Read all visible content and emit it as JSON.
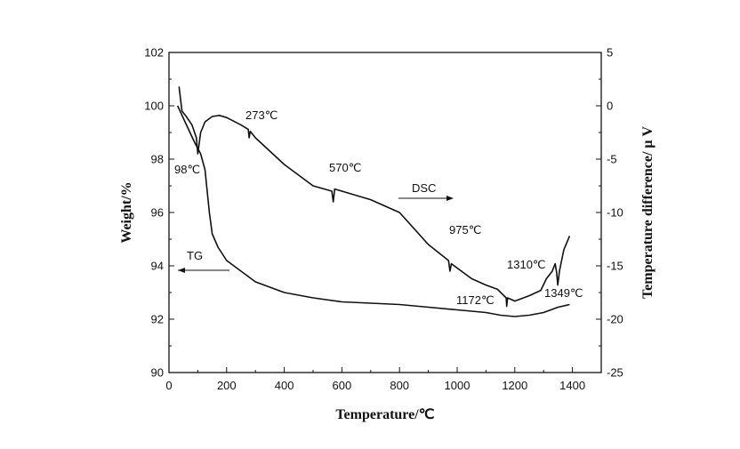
{
  "chart_data": {
    "type": "line",
    "xlabel": "Temperature/℃",
    "ylabel_left": "Weight/%",
    "ylabel_right": "Temperature difference/ μ V",
    "xlim": [
      0,
      1500
    ],
    "ylim_left": [
      90,
      102
    ],
    "ylim_right": [
      -25,
      5
    ],
    "x_ticks": [
      0,
      200,
      400,
      600,
      800,
      1000,
      1200,
      1400
    ],
    "y_left_ticks": [
      90,
      92,
      94,
      96,
      98,
      100,
      102
    ],
    "y_right_ticks": [
      -25,
      -20,
      -15,
      -10,
      -5,
      0,
      5
    ],
    "series": [
      {
        "name": "TG",
        "axis": "left",
        "x": [
          30,
          60,
          90,
          110,
          125,
          140,
          150,
          170,
          200,
          250,
          300,
          400,
          500,
          600,
          700,
          800,
          900,
          1000,
          1100,
          1150,
          1200,
          1250,
          1300,
          1350,
          1390
        ],
        "y": [
          100.0,
          99.3,
          98.6,
          98.2,
          97.6,
          96.0,
          95.2,
          94.7,
          94.2,
          93.8,
          93.4,
          93.0,
          92.8,
          92.65,
          92.6,
          92.55,
          92.45,
          92.35,
          92.25,
          92.15,
          92.1,
          92.15,
          92.25,
          92.45,
          92.55
        ]
      },
      {
        "name": "DSC",
        "axis": "right",
        "x": [
          35,
          45,
          60,
          80,
          95,
          100,
          110,
          125,
          150,
          175,
          200,
          250,
          275,
          278,
          282,
          300,
          400,
          500,
          565,
          570,
          575,
          600,
          700,
          800,
          900,
          970,
          975,
          980,
          1050,
          1100,
          1140,
          1170,
          1172,
          1175,
          1200,
          1250,
          1290,
          1310,
          1330,
          1340,
          1345,
          1349,
          1355,
          1370,
          1390
        ],
        "y": [
          1.8,
          -0.5,
          -1.0,
          -1.8,
          -3.0,
          -4.5,
          -2.5,
          -1.5,
          -1.0,
          -0.9,
          -1.1,
          -1.8,
          -2.2,
          -3.0,
          -2.4,
          -3.0,
          -5.5,
          -7.5,
          -8.0,
          -9.0,
          -7.8,
          -8.0,
          -8.8,
          -10.0,
          -13.0,
          -14.5,
          -15.5,
          -14.8,
          -16.2,
          -16.8,
          -17.2,
          -18.0,
          -18.8,
          -18.0,
          -18.3,
          -17.8,
          -17.3,
          -16.2,
          -15.5,
          -14.8,
          -15.6,
          -16.8,
          -15.5,
          -13.5,
          -12.2
        ]
      }
    ],
    "annotations": [
      {
        "text": "98℃",
        "x": 98,
        "axis": "right"
      },
      {
        "text": "273℃",
        "x": 273,
        "axis": "right"
      },
      {
        "text": "570℃",
        "x": 570,
        "axis": "right"
      },
      {
        "text": "DSC",
        "x": 850,
        "axis": "right"
      },
      {
        "text": "975℃",
        "x": 975,
        "axis": "right"
      },
      {
        "text": "TG",
        "x": 100,
        "axis": "left"
      },
      {
        "text": "1172℃",
        "x": 1172,
        "axis": "right"
      },
      {
        "text": "1310℃",
        "x": 1310,
        "axis": "right"
      },
      {
        "text": "1349℃",
        "x": 1349,
        "axis": "right"
      }
    ]
  }
}
